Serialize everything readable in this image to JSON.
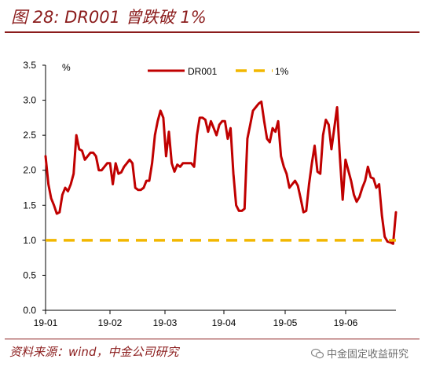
{
  "header": {
    "title": "图 28: DR001 曾跌破 1%"
  },
  "footer": {
    "source": "资料来源：wind，中金公司研究",
    "brand": "中金固定收益研究"
  },
  "chart_data": {
    "type": "line",
    "ylabel": "%",
    "ylim": [
      0,
      3.5
    ],
    "yticks": [
      "0.0",
      "0.5",
      "1.0",
      "1.5",
      "2.0",
      "2.5",
      "3.0",
      "3.5"
    ],
    "xticks": [
      "19-01",
      "19-02",
      "19-03",
      "19-04",
      "19-05",
      "19-06"
    ],
    "legend_position": "top",
    "series": [
      {
        "name": "DR001",
        "color": "#c00000",
        "style": "solid",
        "values": [
          2.2,
          1.8,
          1.6,
          1.5,
          1.38,
          1.4,
          1.65,
          1.75,
          1.7,
          1.8,
          1.95,
          2.5,
          2.3,
          2.28,
          2.15,
          2.2,
          2.25,
          2.25,
          2.2,
          2.0,
          2.0,
          2.05,
          2.1,
          2.1,
          1.8,
          2.1,
          1.95,
          1.97,
          2.05,
          2.1,
          2.15,
          2.1,
          1.75,
          1.72,
          1.72,
          1.75,
          1.85,
          1.85,
          2.1,
          2.5,
          2.7,
          2.85,
          2.75,
          2.2,
          2.55,
          2.1,
          1.98,
          2.08,
          2.05,
          2.1,
          2.1,
          2.1,
          2.1,
          2.05,
          2.5,
          2.75,
          2.75,
          2.72,
          2.55,
          2.7,
          2.6,
          2.5,
          2.65,
          2.7,
          2.7,
          2.45,
          2.6,
          1.95,
          1.5,
          1.42,
          1.42,
          1.45,
          2.45,
          2.65,
          2.85,
          2.9,
          2.95,
          2.98,
          2.7,
          2.45,
          2.4,
          2.6,
          2.55,
          2.7,
          2.2,
          2.05,
          1.95,
          1.75,
          1.8,
          1.85,
          1.78,
          1.6,
          1.4,
          1.42,
          1.8,
          2.1,
          2.35,
          1.98,
          1.95,
          2.5,
          2.72,
          2.65,
          2.3,
          2.6,
          2.9,
          2.2,
          1.58,
          2.15,
          2.0,
          1.85,
          1.65,
          1.55,
          1.62,
          1.75,
          1.85,
          2.05,
          1.9,
          1.88,
          1.75,
          1.8,
          1.35,
          1.05,
          0.98,
          0.97,
          0.95,
          1.4
        ]
      },
      {
        "name": "1%",
        "color": "#f2b700",
        "style": "dashed",
        "values": [
          1.0
        ]
      }
    ]
  }
}
